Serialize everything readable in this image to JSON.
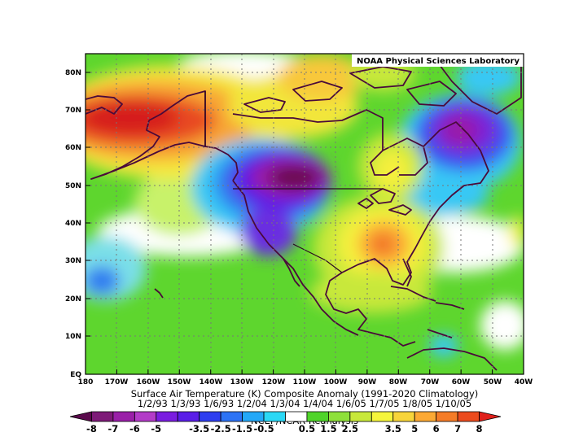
{
  "header": {
    "credit": "NOAA Physical Sciences Laboratory"
  },
  "map": {
    "lat_labels": [
      "80N",
      "70N",
      "60N",
      "50N",
      "40N",
      "30N",
      "20N",
      "10N",
      "EQ"
    ],
    "lon_labels": [
      "180",
      "170W",
      "160W",
      "150W",
      "140W",
      "130W",
      "120W",
      "110W",
      "100W",
      "90W",
      "80W",
      "70W",
      "60W",
      "50W",
      "40W"
    ]
  },
  "caption": {
    "title": "Surface Air Temperature (K) Composite Anomaly (1991-2020 Climatology)",
    "dates": "1/2/93 1/3/93 1/6/93 1/2/04 1/3/04 1/4/04 1/6/05 1/7/05 1/8/05 1/10/05",
    "source": "NCEP/NCAR Reanalysis"
  },
  "colorbar": {
    "labels": [
      "-8",
      "-7",
      "-6",
      "-5",
      "-3.5",
      "-2.5",
      "-1.5",
      "-0.5",
      "0.5",
      "1.5",
      "2.5",
      "3.5",
      "5",
      "6",
      "7",
      "8"
    ],
    "colors": [
      "#5a0a4c",
      "#7e1a78",
      "#9a1fa8",
      "#b33bc8",
      "#7a1de0",
      "#5a1ee8",
      "#2e3ef0",
      "#2d73f5",
      "#24a8f8",
      "#2bd8f5",
      "#ffffff",
      "#4fd42a",
      "#8ee03a",
      "#c8e83a",
      "#f5f53c",
      "#f8d53a",
      "#fca934",
      "#f57c27",
      "#ec4b1e",
      "#e0201b"
    ]
  }
}
